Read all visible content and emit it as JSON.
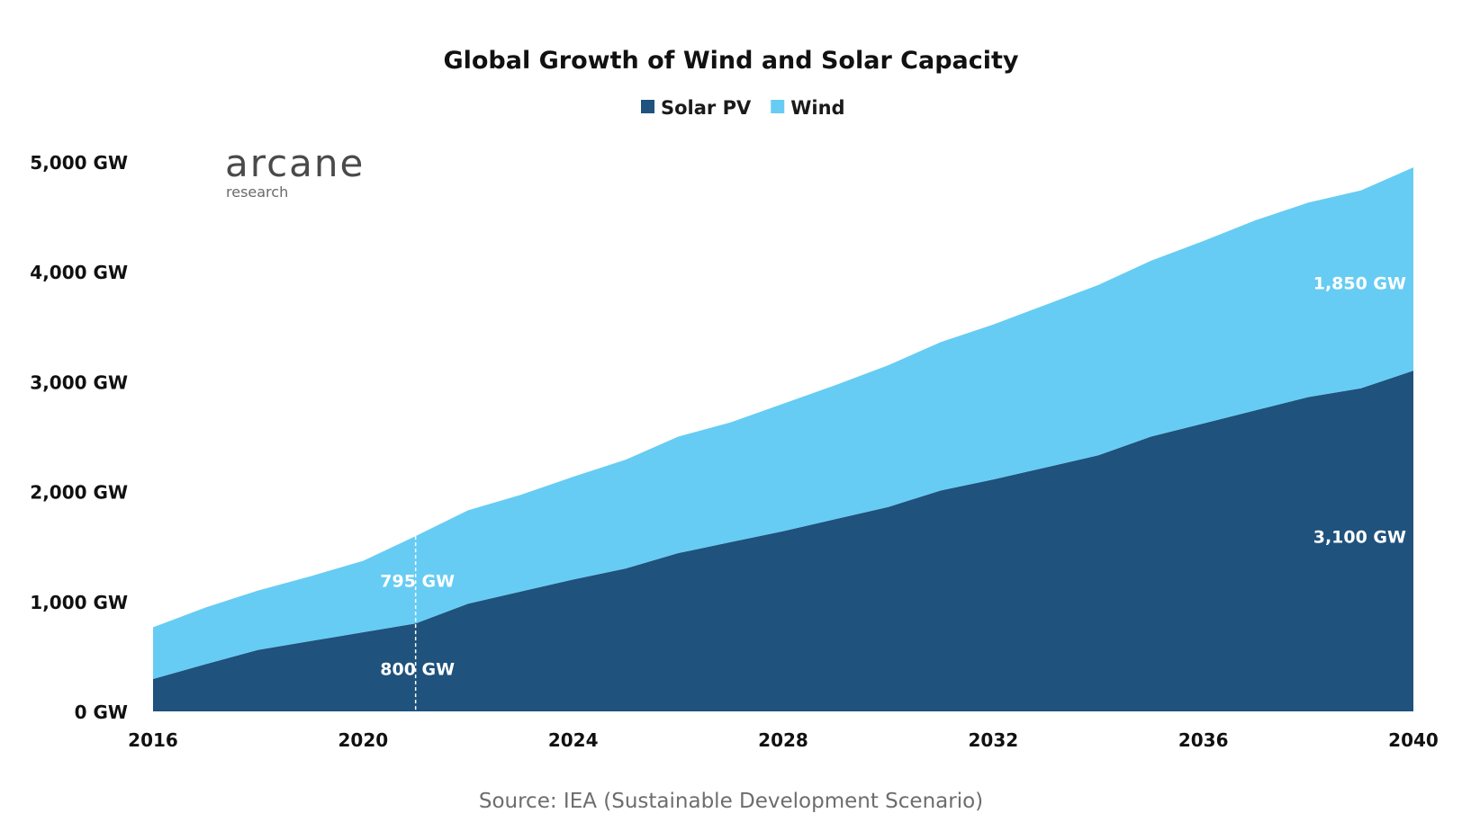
{
  "chart_data": {
    "type": "area",
    "stacked": true,
    "title": "Global Growth of Wind and Solar Capacity",
    "source": "Source: IEA (Sustainable Development Scenario)",
    "logo": {
      "main": "arcane",
      "sub": "research"
    },
    "x": [
      2016,
      2017,
      2018,
      2019,
      2020,
      2021,
      2022,
      2023,
      2024,
      2025,
      2026,
      2027,
      2028,
      2029,
      2030,
      2031,
      2032,
      2033,
      2034,
      2035,
      2036,
      2037,
      2038,
      2039,
      2040
    ],
    "series": [
      {
        "name": "Solar PV",
        "color": "#1f527c",
        "values": [
          295,
          430,
          560,
          640,
          720,
          800,
          980,
          1090,
          1200,
          1300,
          1440,
          1540,
          1640,
          1750,
          1860,
          2010,
          2110,
          2220,
          2330,
          2500,
          2620,
          2740,
          2860,
          2940,
          3100
        ]
      },
      {
        "name": "Wind",
        "color": "#66ccf3",
        "values": [
          470,
          515,
          540,
          590,
          650,
          795,
          850,
          880,
          935,
          990,
          1060,
          1090,
          1160,
          1220,
          1290,
          1350,
          1410,
          1480,
          1550,
          1600,
          1660,
          1730,
          1770,
          1800,
          1850
        ]
      }
    ],
    "ylim": [
      0,
      5000
    ],
    "yticks": [
      0,
      1000,
      2000,
      3000,
      4000,
      5000
    ],
    "ytick_labels": [
      "0 GW",
      "1,000 GW",
      "2,000 GW",
      "3,000 GW",
      "4,000 GW",
      "5,000 GW"
    ],
    "xticks": [
      2016,
      2020,
      2024,
      2028,
      2032,
      2036,
      2040
    ],
    "xtick_labels": [
      "2016",
      "2020",
      "2024",
      "2028",
      "2032",
      "2036",
      "2040"
    ],
    "legend_position": "top-center",
    "grid": false,
    "marker_year": 2021,
    "annotations": [
      {
        "text": "795 GW",
        "x": 2021,
        "y": 1190,
        "series": "Wind"
      },
      {
        "text": "800 GW",
        "x": 2021,
        "y": 390,
        "series": "Solar PV"
      },
      {
        "text": "1,850 GW",
        "x": 2040,
        "y": 3900,
        "series": "Wind"
      },
      {
        "text": "3,100 GW",
        "x": 2040,
        "y": 1590,
        "series": "Solar PV"
      }
    ]
  }
}
